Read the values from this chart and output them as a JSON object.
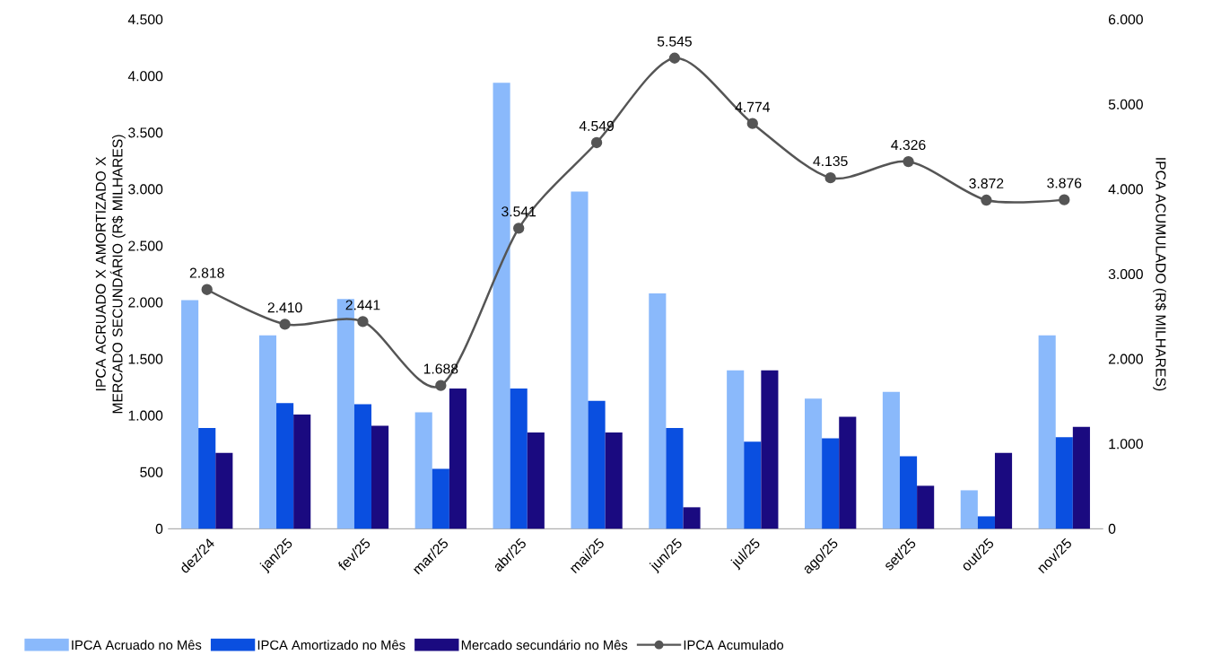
{
  "chart_data": {
    "type": "bar",
    "categories": [
      "dez/24",
      "jan/25",
      "fev/25",
      "mar/25",
      "abr/25",
      "mai/25",
      "jun/25",
      "jul/25",
      "ago/25",
      "set/25",
      "out/25",
      "nov/25"
    ],
    "ylabel": "IPCA ACRUADO X AMORTIZADO X MERCADO SECUNDÁRIO (R$ MILHARES)",
    "y2label": "IPCA ACUMULADO (R$ MILHARES)",
    "ylim": [
      0,
      4500
    ],
    "yticks": [
      0,
      500,
      {
        "value": 1000,
        "label": "1.000"
      },
      {
        "value": 1500,
        "label": "1.500"
      },
      {
        "value": 2000,
        "label": "2.000"
      },
      {
        "value": 2500,
        "label": "2.500"
      },
      {
        "value": 3000,
        "label": "3.000"
      },
      {
        "value": 3500,
        "label": "3.500"
      },
      {
        "value": 4000,
        "label": "4.000"
      },
      {
        "value": 4500,
        "label": "4.500"
      }
    ],
    "y2lim": [
      0,
      6000
    ],
    "y2ticks": [
      0,
      {
        "value": 1000,
        "label": "1.000"
      },
      {
        "value": 2000,
        "label": "2.000"
      },
      {
        "value": 3000,
        "label": "3.000"
      },
      {
        "value": 4000,
        "label": "4.000"
      },
      {
        "value": 5000,
        "label": "5.000"
      },
      {
        "value": 6000,
        "label": "6.000"
      }
    ],
    "legend": "bottom",
    "grid": false,
    "series": [
      {
        "name": "IPCA Acruado no Mês",
        "color": "#8ab9fb",
        "values": [
          2020,
          1710,
          2030,
          1030,
          3940,
          2980,
          2080,
          1400,
          1150,
          1210,
          340,
          1710
        ]
      },
      {
        "name": "IPCA Amortizado no Mês",
        "color": "#0a4fe0",
        "values": [
          890,
          1110,
          1100,
          530,
          1240,
          1130,
          890,
          770,
          800,
          640,
          110,
          810
        ]
      },
      {
        "name": "Mercado secundário no Mês",
        "color": "#1a0a80",
        "values": [
          670,
          1010,
          910,
          1240,
          850,
          850,
          190,
          1400,
          990,
          380,
          670,
          900
        ]
      },
      {
        "name": "IPCA Acumulado",
        "type": "line",
        "axis": "y2",
        "color": "#555555",
        "marker": "circle",
        "values": [
          2818,
          2410,
          2441,
          1688,
          3541,
          4549,
          5545,
          4774,
          4135,
          4326,
          3872,
          3876
        ],
        "value_labels": [
          "2.818",
          "2.410",
          "2.441",
          "1.688",
          "3.541",
          "4.549",
          "5.545",
          "4.774",
          "4.135",
          "4.326",
          "3.872",
          "3.876"
        ]
      }
    ]
  }
}
